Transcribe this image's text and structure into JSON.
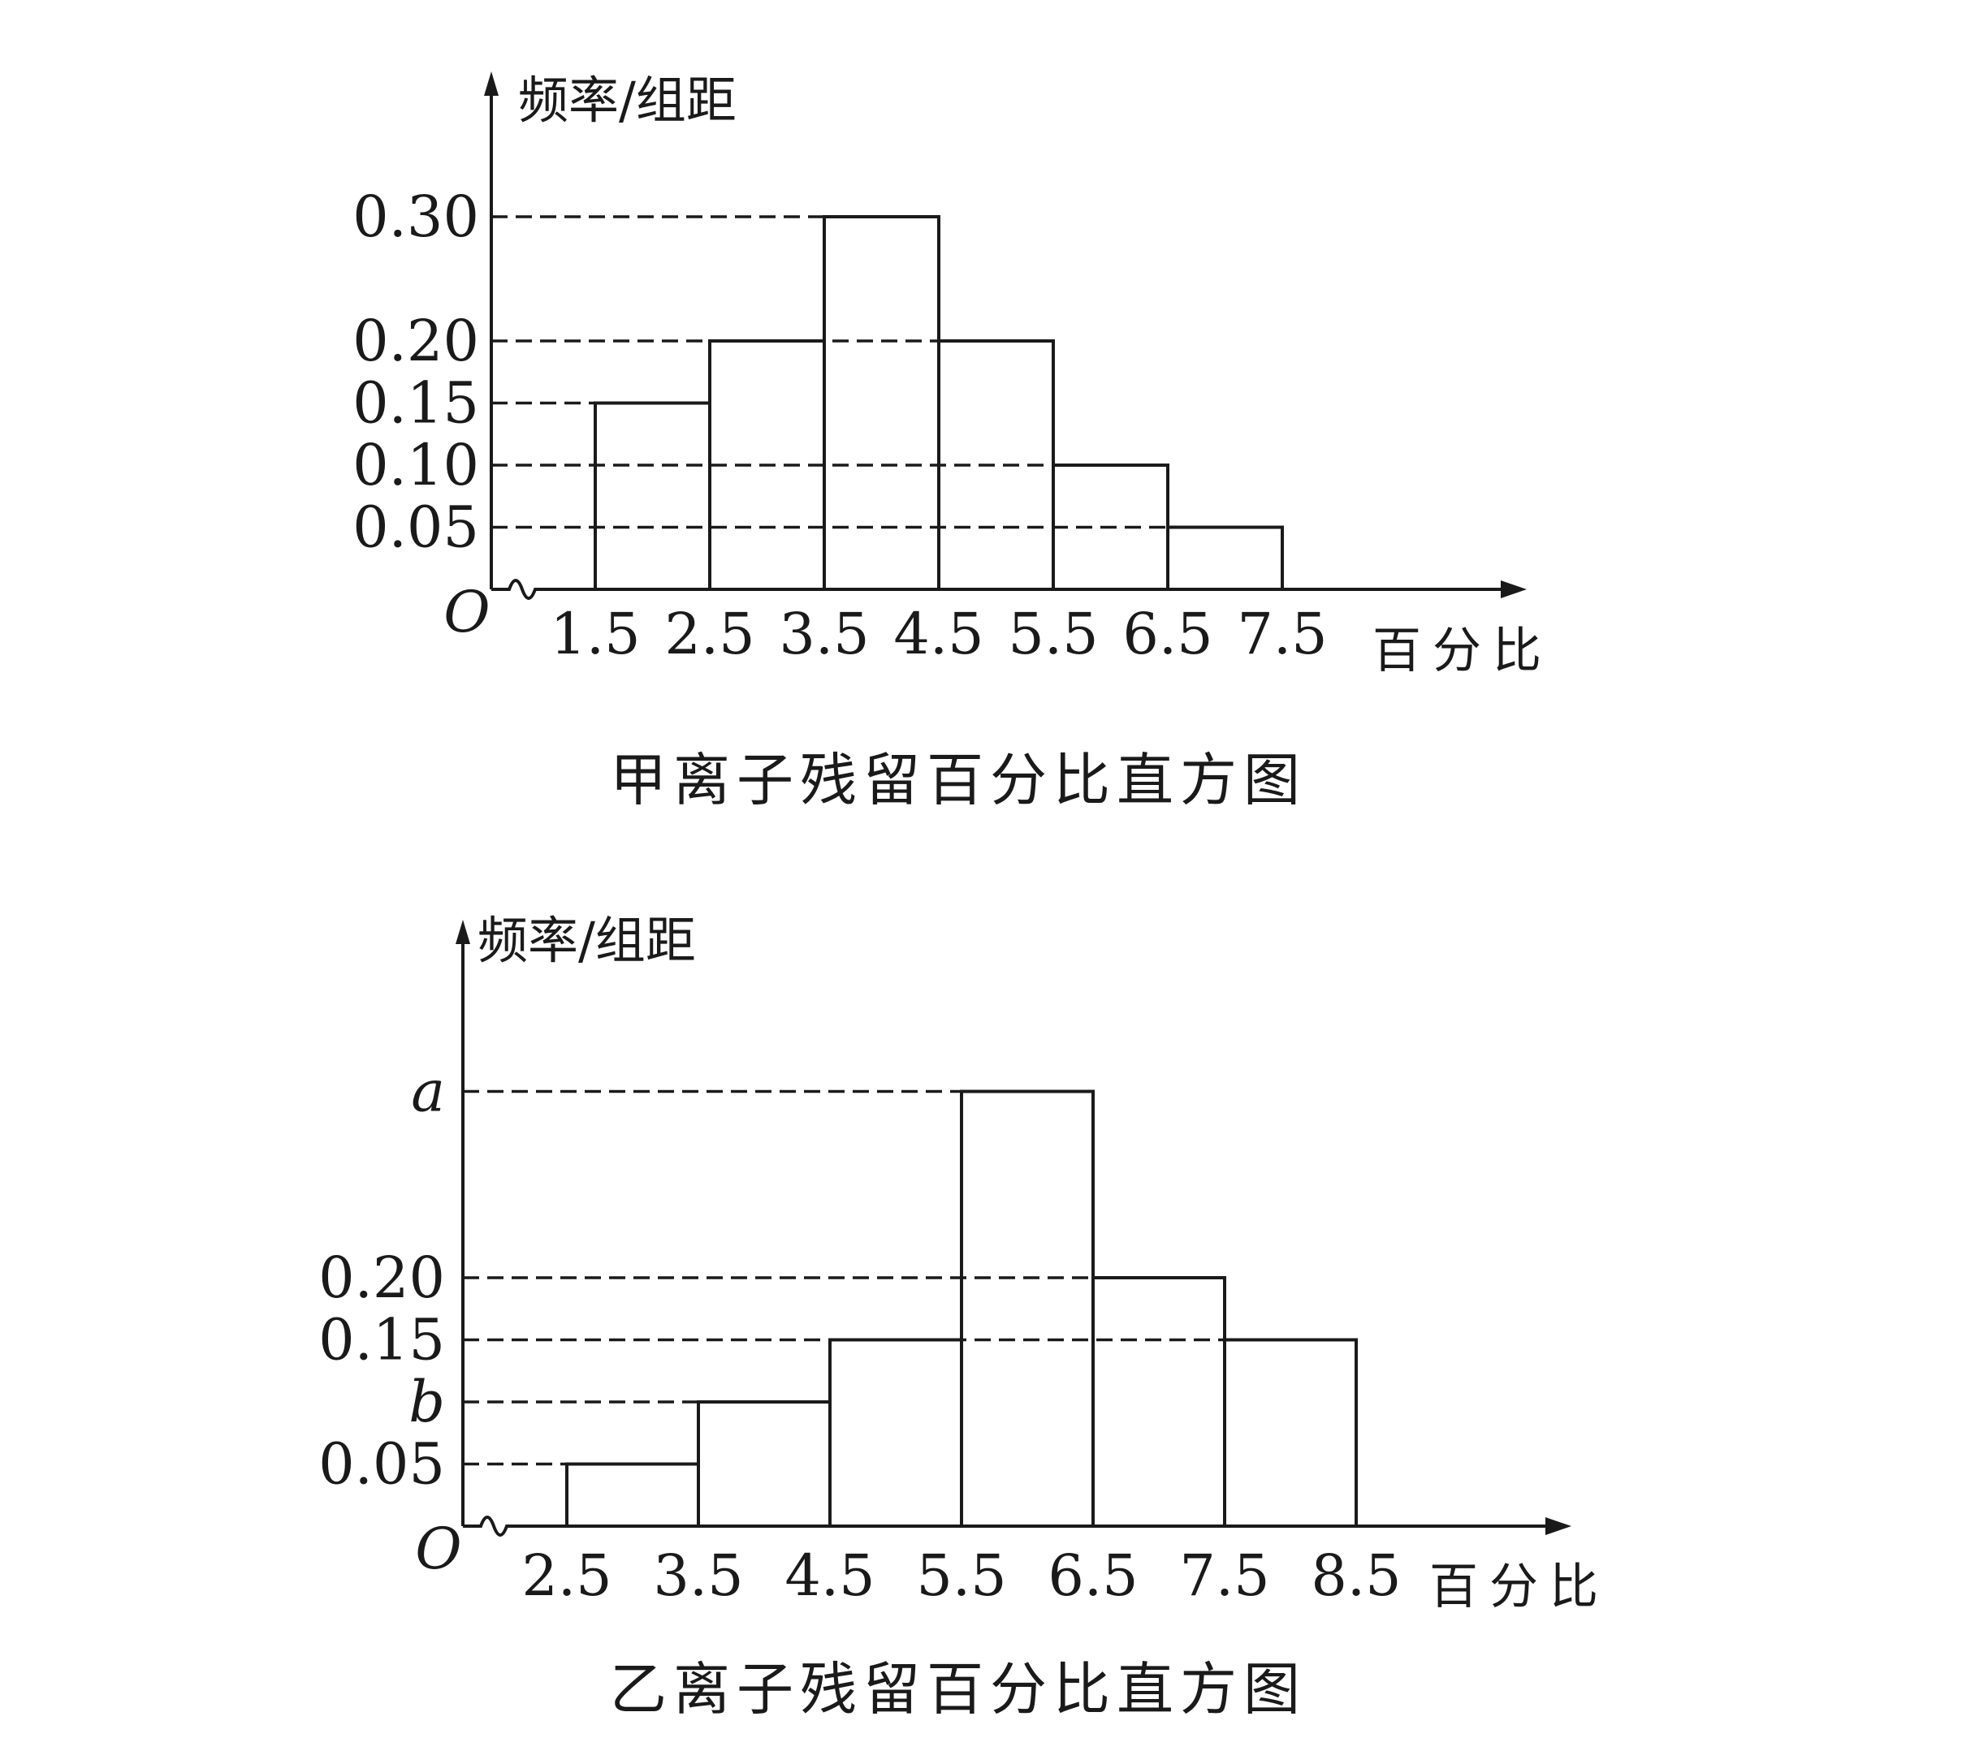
{
  "chart_data": [
    {
      "type": "bar",
      "title": "甲离子残留百分比直方图",
      "ylabel": "频率/组距",
      "xlabel": "百分比",
      "origin_label": "O",
      "x_ticks": [
        "1.5",
        "2.5",
        "3.5",
        "4.5",
        "5.5",
        "6.5",
        "7.5"
      ],
      "y_ticks": [
        {
          "label": "0.05",
          "value": 0.05
        },
        {
          "label": "0.10",
          "value": 0.1
        },
        {
          "label": "0.15",
          "value": 0.15
        },
        {
          "label": "0.20",
          "value": 0.2
        },
        {
          "label": "0.30",
          "value": 0.3
        }
      ],
      "bins": [
        {
          "from": 1.5,
          "to": 2.5,
          "value": 0.15
        },
        {
          "from": 2.5,
          "to": 3.5,
          "value": 0.2
        },
        {
          "from": 3.5,
          "to": 4.5,
          "value": 0.3
        },
        {
          "from": 4.5,
          "to": 5.5,
          "value": 0.2
        },
        {
          "from": 5.5,
          "to": 6.5,
          "value": 0.1
        },
        {
          "from": 6.5,
          "to": 7.5,
          "value": 0.05
        }
      ],
      "xlim": [
        1.5,
        7.5
      ],
      "ylim": [
        0,
        0.3
      ]
    },
    {
      "type": "bar",
      "title": "乙离子残留百分比直方图",
      "ylabel": "频率/组距",
      "xlabel": "百分比",
      "origin_label": "O",
      "x_ticks": [
        "2.5",
        "3.5",
        "4.5",
        "5.5",
        "6.5",
        "7.5",
        "8.5"
      ],
      "y_ticks": [
        {
          "label": "0.05",
          "value": 0.05
        },
        {
          "label": "b",
          "value": 0.1
        },
        {
          "label": "0.15",
          "value": 0.15
        },
        {
          "label": "0.20",
          "value": 0.2
        },
        {
          "label": "a",
          "value": 0.35
        }
      ],
      "bins": [
        {
          "from": 2.5,
          "to": 3.5,
          "value": 0.05
        },
        {
          "from": 3.5,
          "to": 4.5,
          "value": 0.1,
          "label": "b"
        },
        {
          "from": 4.5,
          "to": 5.5,
          "value": 0.15
        },
        {
          "from": 5.5,
          "to": 6.5,
          "value": 0.35,
          "label": "a"
        },
        {
          "from": 6.5,
          "to": 7.5,
          "value": 0.2
        },
        {
          "from": 7.5,
          "to": 8.5,
          "value": 0.15
        }
      ],
      "xlim": [
        2.5,
        8.5
      ],
      "ylim": [
        0,
        0.35
      ]
    }
  ]
}
